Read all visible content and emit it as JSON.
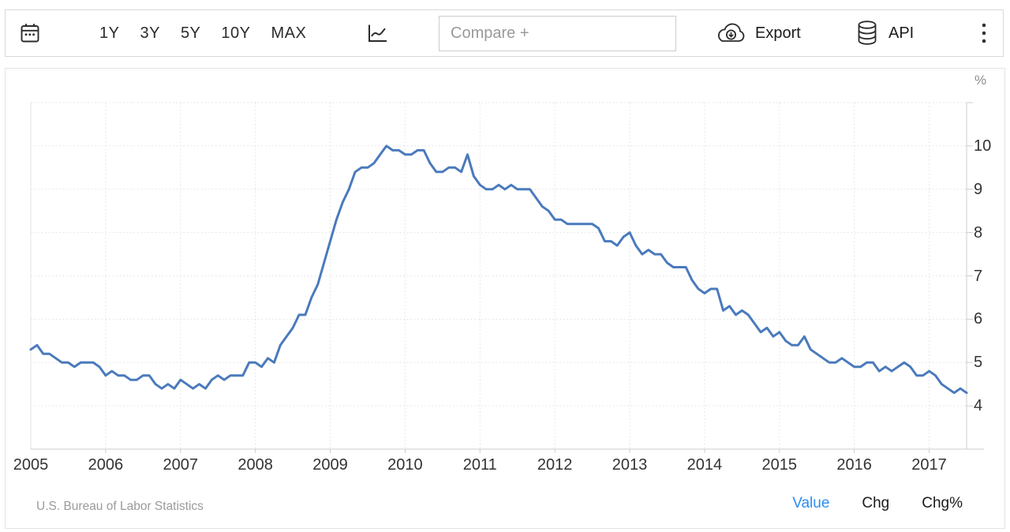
{
  "toolbar": {
    "ranges": [
      "1Y",
      "3Y",
      "5Y",
      "10Y",
      "MAX"
    ],
    "compare_placeholder": "Compare +",
    "export_label": "Export",
    "api_label": "API",
    "icons": [
      "calendar-icon",
      "line-chart-icon",
      "cloud-download-icon",
      "database-icon",
      "kebab-menu-icon"
    ]
  },
  "chart": {
    "unit_label": "%"
  },
  "footer": {
    "source": "U.S. Bureau of Labor Statistics",
    "views": [
      {
        "label": "Value",
        "active": true
      },
      {
        "label": "Chg",
        "active": false
      },
      {
        "label": "Chg%",
        "active": false
      }
    ],
    "active_color": "#2e8df2"
  },
  "chart_data": {
    "type": "line",
    "unit": "%",
    "x_start": "2005-01",
    "points_per_year": 12,
    "x_ticks": [
      2005,
      2006,
      2007,
      2008,
      2009,
      2010,
      2011,
      2012,
      2013,
      2014,
      2015,
      2016,
      2017
    ],
    "x_grid": [
      2006,
      2007,
      2008,
      2009,
      2010,
      2011,
      2012,
      2013,
      2014,
      2015,
      2016,
      2017
    ],
    "y_ticks": [
      4,
      5,
      6,
      7,
      8,
      9,
      10
    ],
    "y_grid": [
      4,
      5,
      6,
      7,
      8,
      9,
      10,
      11
    ],
    "ylim": [
      3,
      11
    ],
    "xlim": [
      2005.0,
      2017.5
    ],
    "grid": "dotted",
    "legend": "none",
    "line_color": "#4a7abc",
    "series": [
      {
        "name": "Value",
        "values": [
          5.3,
          5.4,
          5.2,
          5.2,
          5.1,
          5.0,
          5.0,
          4.9,
          5.0,
          5.0,
          5.0,
          4.9,
          4.7,
          4.8,
          4.7,
          4.7,
          4.6,
          4.6,
          4.7,
          4.7,
          4.5,
          4.4,
          4.5,
          4.4,
          4.6,
          4.5,
          4.4,
          4.5,
          4.4,
          4.6,
          4.7,
          4.6,
          4.7,
          4.7,
          4.7,
          5.0,
          5.0,
          4.9,
          5.1,
          5.0,
          5.4,
          5.6,
          5.8,
          6.1,
          6.1,
          6.5,
          6.8,
          7.3,
          7.8,
          8.3,
          8.7,
          9.0,
          9.4,
          9.5,
          9.5,
          9.6,
          9.8,
          10.0,
          9.9,
          9.9,
          9.8,
          9.8,
          9.9,
          9.9,
          9.6,
          9.4,
          9.4,
          9.5,
          9.5,
          9.4,
          9.8,
          9.3,
          9.1,
          9.0,
          9.0,
          9.1,
          9.0,
          9.1,
          9.0,
          9.0,
          9.0,
          8.8,
          8.6,
          8.5,
          8.3,
          8.3,
          8.2,
          8.2,
          8.2,
          8.2,
          8.2,
          8.1,
          7.8,
          7.8,
          7.7,
          7.9,
          8.0,
          7.7,
          7.5,
          7.6,
          7.5,
          7.5,
          7.3,
          7.2,
          7.2,
          7.2,
          6.9,
          6.7,
          6.6,
          6.7,
          6.7,
          6.2,
          6.3,
          6.1,
          6.2,
          6.1,
          5.9,
          5.7,
          5.8,
          5.6,
          5.7,
          5.5,
          5.4,
          5.4,
          5.6,
          5.3,
          5.2,
          5.1,
          5.0,
          5.0,
          5.1,
          5.0,
          4.9,
          4.9,
          5.0,
          5.0,
          4.8,
          4.9,
          4.8,
          4.9,
          5.0,
          4.9,
          4.7,
          4.7,
          4.8,
          4.7,
          4.5,
          4.4,
          4.3,
          4.4,
          4.3
        ]
      }
    ]
  }
}
